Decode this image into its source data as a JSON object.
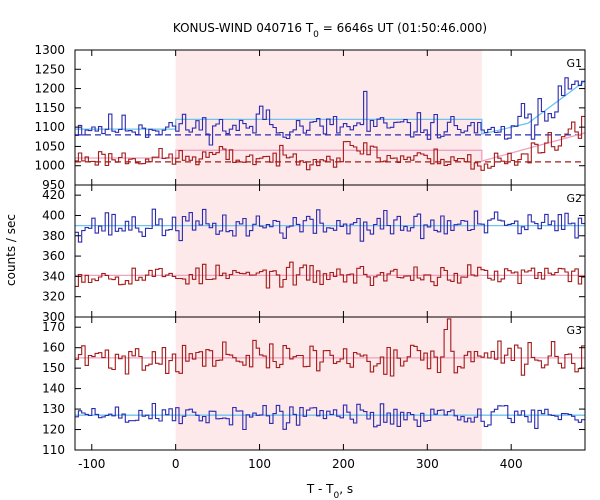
{
  "chart_data": {
    "type": "line",
    "title_prefix": "KONUS-WIND 040716 T",
    "title_sub": "0",
    "title_suffix": " = 6646s UT (01:50:46.000)",
    "xlabel_prefix": "T - T",
    "xlabel_sub": "0",
    "xlabel_suffix": ", s",
    "ylabel": "counts / sec",
    "xlim": [
      -120,
      488
    ],
    "xticks": [
      -100,
      0,
      100,
      200,
      300,
      400
    ],
    "highlight": {
      "x_start": 0,
      "x_end": 365,
      "color": "#fde8ea"
    },
    "colors": {
      "hist_high": "#2b2bb0",
      "hist_low": "#a51a1a",
      "fit_high": "#6cc4f0",
      "fit_low": "#f0a0c0"
    },
    "panels": [
      {
        "label": "G1",
        "ylim": [
          950,
          1300
        ],
        "yticks": [
          950,
          1000,
          1050,
          1100,
          1150,
          1200,
          1250,
          1300
        ],
        "background_levels": {
          "high": 1080,
          "low": 1010
        },
        "series": [
          {
            "role": "high",
            "base": 1100,
            "amplitude": 26,
            "seed": 11,
            "features": [
              {
                "x_start": 98,
                "x_end": 110,
                "add": 40
              },
              {
                "x_start": 224,
                "x_end": 228,
                "add": 85
              },
              {
                "x_start": 360,
                "x_end": 400,
                "add": -20
              },
              {
                "x_start": 400,
                "x_end": 488,
                "ramp_from": 0,
                "ramp_to": 120
              }
            ],
            "fit": {
              "x": [
                -120,
                0,
                0,
                365,
                365,
                420,
                488
              ],
              "y": [
                1095,
                1095,
                1120,
                1120,
                1082,
                1110,
                1220
              ]
            }
          },
          {
            "role": "low",
            "base": 1020,
            "amplitude": 18,
            "seed": 23,
            "features": [
              {
                "x_start": 40,
                "x_end": 60,
                "add": 10
              },
              {
                "x_start": 200,
                "x_end": 240,
                "add": 25
              },
              {
                "x_start": 350,
                "x_end": 380,
                "add": -25
              },
              {
                "x_start": 400,
                "x_end": 488,
                "ramp_from": 0,
                "ramp_to": 80
              }
            ],
            "fit": {
              "x": [
                -120,
                0,
                0,
                365,
                365,
                420,
                488
              ],
              "y": [
                1020,
                1020,
                1040,
                1040,
                1012,
                1045,
                1085
              ]
            }
          }
        ]
      },
      {
        "label": "G2",
        "ylim": [
          300,
          430
        ],
        "yticks": [
          300,
          320,
          340,
          360,
          380,
          400,
          420
        ],
        "series": [
          {
            "role": "high",
            "base": 390,
            "amplitude": 11,
            "seed": 37,
            "features": [],
            "fit": {
              "x": [
                -120,
                488
              ],
              "y": [
                390,
                390
              ]
            }
          },
          {
            "role": "low",
            "base": 341,
            "amplitude": 8,
            "seed": 53,
            "features": [],
            "fit": {
              "x": [
                -120,
                488
              ],
              "y": [
                341,
                341
              ]
            }
          }
        ]
      },
      {
        "label": "G3",
        "ylim": [
          110,
          175
        ],
        "yticks": [
          110,
          120,
          130,
          140,
          150,
          160,
          170
        ],
        "series": [
          {
            "role": "low",
            "base": 155,
            "amplitude": 6,
            "seed": 71,
            "features": [
              {
                "x_start": 320,
                "x_end": 326,
                "add": 12
              }
            ],
            "fit": {
              "x": [
                -120,
                488
              ],
              "y": [
                155,
                155
              ]
            }
          },
          {
            "role": "high",
            "base": 127,
            "amplitude": 5,
            "seed": 89,
            "features": [],
            "fit": {
              "x": [
                -120,
                488
              ],
              "y": [
                127,
                127
              ]
            }
          }
        ]
      }
    ]
  }
}
